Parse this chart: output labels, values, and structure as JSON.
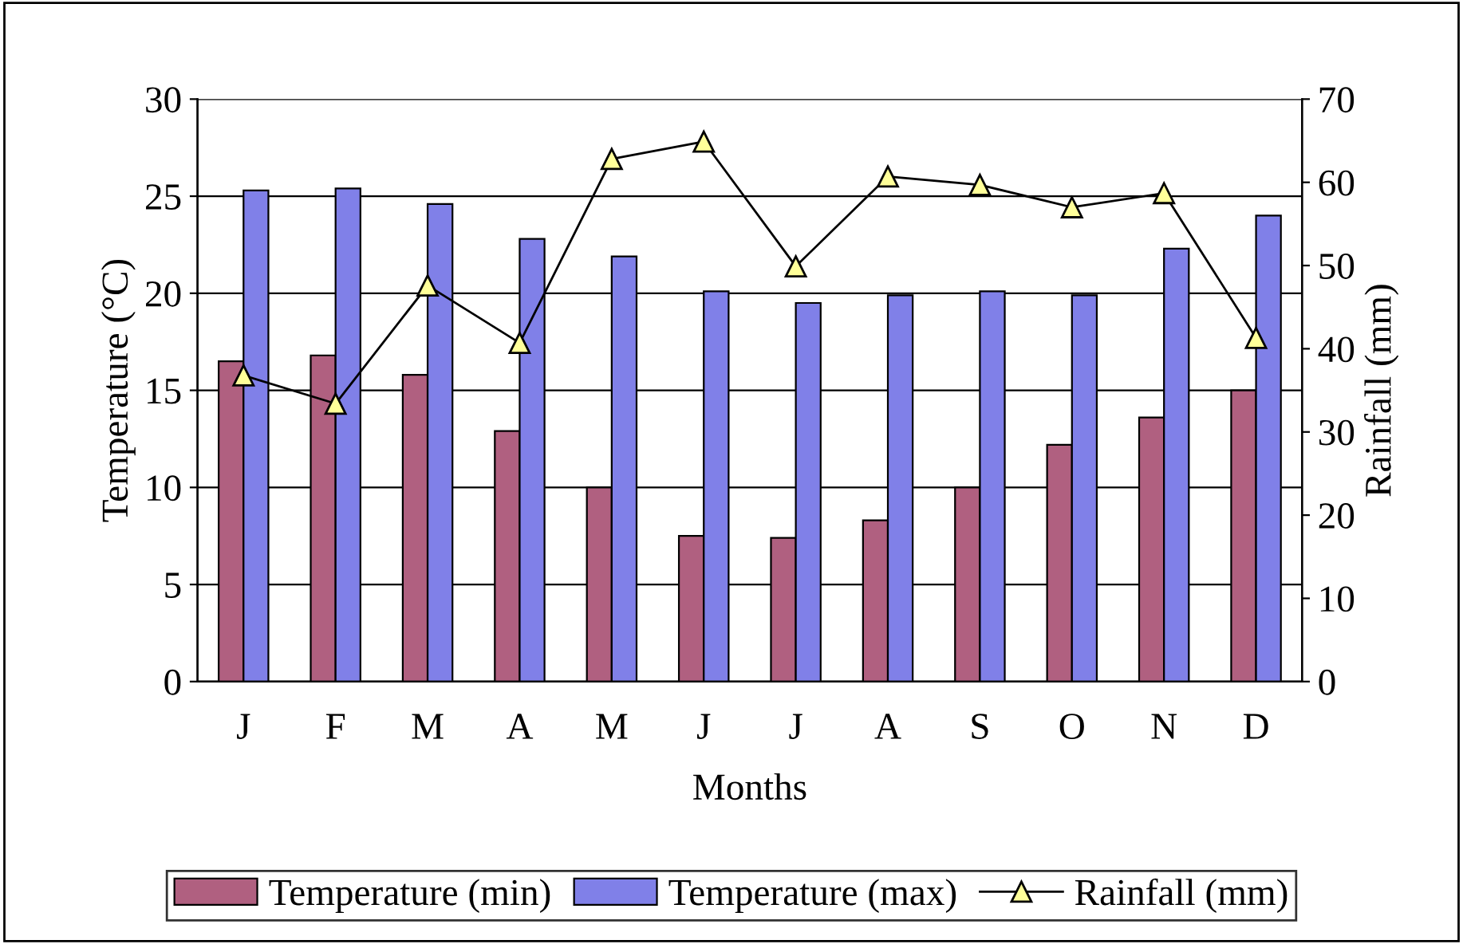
{
  "chart_data": {
    "type": "bar",
    "xlabel": "Months",
    "ylabel": "Temperature (°C)",
    "y2label": "Rainfall (mm)",
    "categories": [
      "J",
      "F",
      "M",
      "A",
      "M",
      "J",
      "J",
      "A",
      "S",
      "O",
      "N",
      "D"
    ],
    "series": [
      {
        "name": "Temperature (min)",
        "color": "#b06080",
        "values": [
          16.5,
          16.8,
          15.8,
          12.9,
          10,
          7.5,
          7.4,
          8.3,
          10,
          12.2,
          13.6,
          15
        ]
      },
      {
        "name": "Temperature (max)",
        "color": "#8080e8",
        "values": [
          25.3,
          25.4,
          24.6,
          22.8,
          21.9,
          20.1,
          19.5,
          19.9,
          20.1,
          19.9,
          22.3,
          24
        ]
      },
      {
        "name": "Rainfall (mm)",
        "type": "line",
        "axis": "y2",
        "color": "#000000",
        "marker": "triangle",
        "values": [
          36.8,
          33.4,
          47.6,
          40.7,
          62.8,
          64.9,
          49.9,
          60.7,
          59.7,
          57,
          58.7,
          41.3
        ]
      }
    ],
    "ylim": [
      0,
      30
    ],
    "yticks": [
      0,
      5,
      10,
      15,
      20,
      25,
      30
    ],
    "y2lim": [
      0,
      70
    ],
    "y2ticks": [
      0,
      10,
      20,
      30,
      40,
      50,
      60,
      70
    ],
    "grid": "y",
    "legend": "bottom"
  }
}
